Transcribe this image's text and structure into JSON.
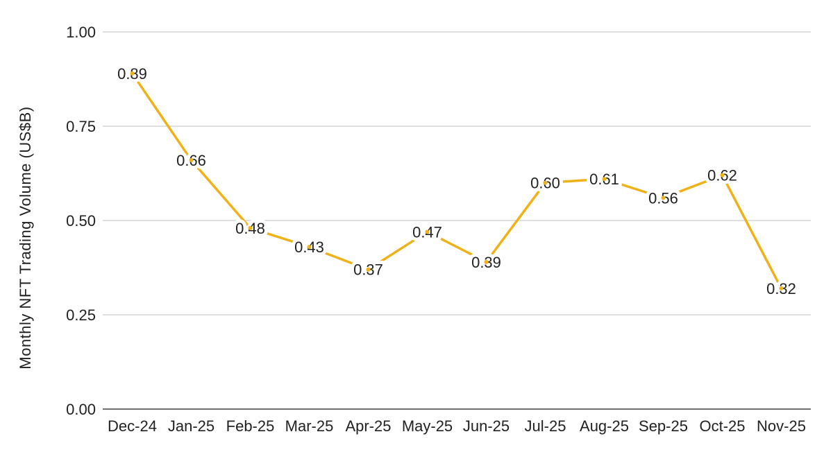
{
  "chart_data": {
    "type": "line",
    "title": "",
    "y_axis_title": "Monthly NFT Trading Volume (US$B)",
    "x_axis_title": "",
    "categories": [
      "Dec-24",
      "Jan-25",
      "Feb-25",
      "Mar-25",
      "Apr-25",
      "May-25",
      "Jun-25",
      "Jul-25",
      "Aug-25",
      "Sep-25",
      "Oct-25",
      "Nov-25"
    ],
    "series": [
      {
        "name": "Monthly NFT Trading Volume (US$B)",
        "values": [
          0.89,
          0.66,
          0.48,
          0.43,
          0.37,
          0.47,
          0.39,
          0.6,
          0.61,
          0.56,
          0.62,
          0.32
        ],
        "labels": [
          "0.89",
          "0.66",
          "0.48",
          "0.43",
          "0.37",
          "0.47",
          "0.39",
          "0.60",
          "0.61",
          "0.56",
          "0.62",
          "0.32"
        ]
      }
    ],
    "y_ticks": [
      {
        "value": 0.0,
        "label": "0.00"
      },
      {
        "value": 0.25,
        "label": "0.25"
      },
      {
        "value": 0.5,
        "label": "0.50"
      },
      {
        "value": 0.75,
        "label": "0.75"
      },
      {
        "value": 1.0,
        "label": "1.00"
      }
    ],
    "ylim": [
      0.0,
      1.0
    ],
    "grid": "horizontal",
    "legend_position": "none",
    "data_labels_visible": true,
    "colors": {
      "line": "#EFB118",
      "marker": "#EFB118",
      "grid": "#CCCCCC",
      "zero_axis": "#707070",
      "text": "#212121",
      "background": "#FFFFFF",
      "label_halo": "#FFFFFF"
    }
  }
}
